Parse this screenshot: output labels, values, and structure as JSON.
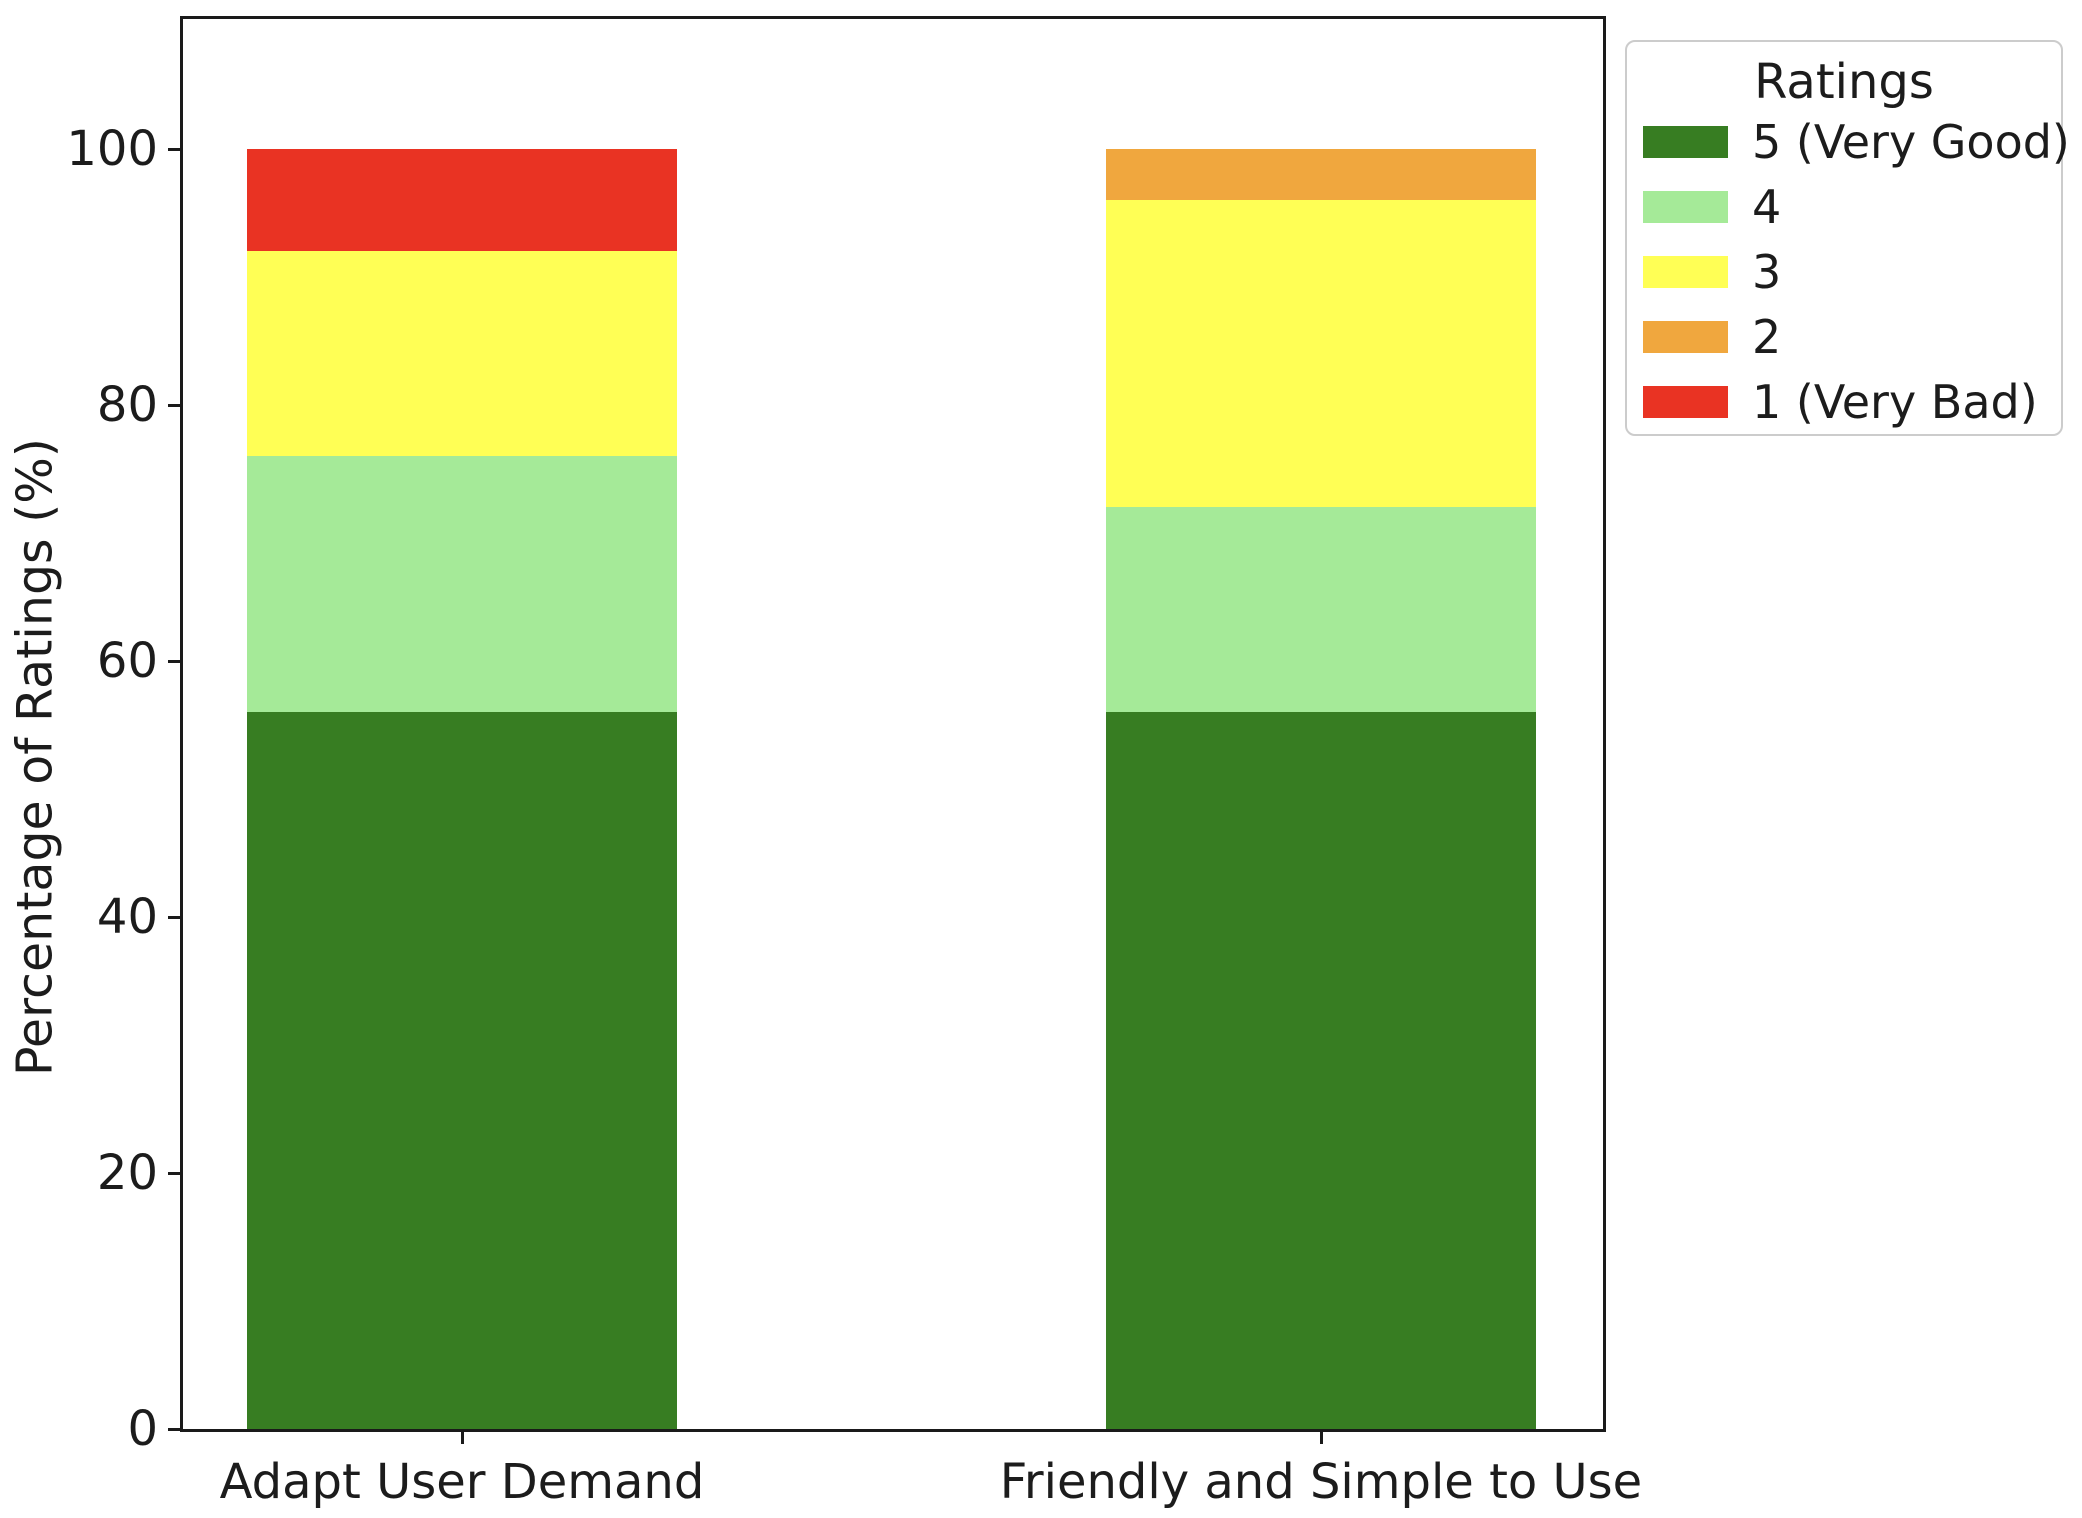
{
  "chart_data": {
    "type": "bar",
    "stacked": true,
    "title": "",
    "xlabel": "",
    "ylabel": "Percentage of Ratings (%)",
    "categories": [
      "Adapt User Demand",
      "Friendly and Simple to Use"
    ],
    "series": [
      {
        "name": "5 (Very Good)",
        "color": "#377d22",
        "values": [
          56,
          56
        ]
      },
      {
        "name": "4",
        "color": "#a5ea98",
        "values": [
          20,
          16
        ]
      },
      {
        "name": "3",
        "color": "#ffff55",
        "values": [
          16,
          24
        ]
      },
      {
        "name": "2",
        "color": "#f0a73e",
        "values": [
          0,
          4
        ]
      },
      {
        "name": "1 (Very Bad)",
        "color": "#e93323",
        "values": [
          8,
          0
        ]
      }
    ],
    "ylim": [
      0,
      100
    ],
    "yticks": [
      0,
      20,
      40,
      60,
      80,
      100
    ],
    "legend": {
      "title": "Ratings",
      "position": "upper-right-outside"
    },
    "grid": false,
    "background": "#ffffff",
    "axis_color": "#1a1a1a"
  }
}
